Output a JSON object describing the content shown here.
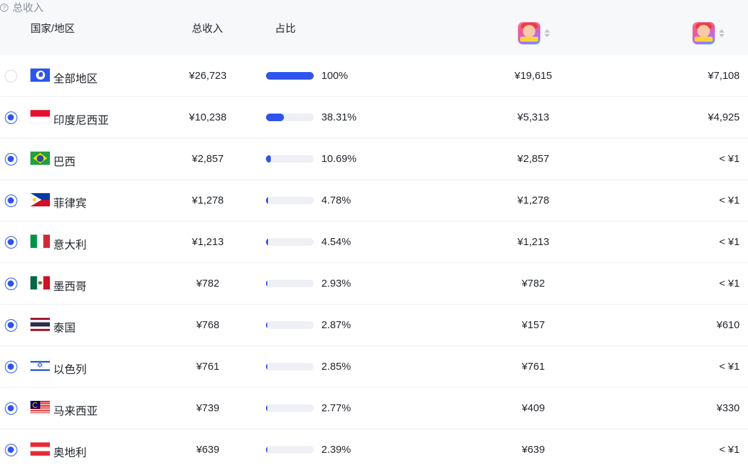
{
  "header": {
    "country": "国家/地区",
    "total": "总收入",
    "share": "占比",
    "group_label": "总收入",
    "help_glyph": "?"
  },
  "rows": [
    {
      "country": "全部地区",
      "flag": "globe-icon",
      "total": "¥26,723",
      "share": 1.0,
      "share_label": "100%",
      "app1": "¥19,615",
      "app2": "¥7,108",
      "selected": false
    },
    {
      "country": "印度尼西亚",
      "flag": "flag-indonesia",
      "total": "¥10,238",
      "share": 0.3831,
      "share_label": "38.31%",
      "app1": "¥5,313",
      "app2": "¥4,925",
      "selected": true
    },
    {
      "country": "巴西",
      "flag": "flag-brazil",
      "total": "¥2,857",
      "share": 0.1069,
      "share_label": "10.69%",
      "app1": "¥2,857",
      "app2": "< ¥1",
      "selected": true
    },
    {
      "country": "菲律宾",
      "flag": "flag-philippines",
      "total": "¥1,278",
      "share": 0.0478,
      "share_label": "4.78%",
      "app1": "¥1,278",
      "app2": "< ¥1",
      "selected": true
    },
    {
      "country": "意大利",
      "flag": "flag-italy",
      "total": "¥1,213",
      "share": 0.0454,
      "share_label": "4.54%",
      "app1": "¥1,213",
      "app2": "< ¥1",
      "selected": true
    },
    {
      "country": "墨西哥",
      "flag": "flag-mexico",
      "total": "¥782",
      "share": 0.0293,
      "share_label": "2.93%",
      "app1": "¥782",
      "app2": "< ¥1",
      "selected": true
    },
    {
      "country": "泰国",
      "flag": "flag-thailand",
      "total": "¥768",
      "share": 0.0287,
      "share_label": "2.87%",
      "app1": "¥157",
      "app2": "¥610",
      "selected": true
    },
    {
      "country": "以色列",
      "flag": "flag-israel",
      "total": "¥761",
      "share": 0.0285,
      "share_label": "2.85%",
      "app1": "¥761",
      "app2": "< ¥1",
      "selected": true
    },
    {
      "country": "马来西亚",
      "flag": "flag-malaysia",
      "total": "¥739",
      "share": 0.0277,
      "share_label": "2.77%",
      "app1": "¥409",
      "app2": "¥330",
      "selected": true
    },
    {
      "country": "奥地利",
      "flag": "flag-austria",
      "total": "¥639",
      "share": 0.0239,
      "share_label": "2.39%",
      "app1": "¥639",
      "app2": "< ¥1",
      "selected": true
    }
  ],
  "colors": {
    "accent": "#2f54eb",
    "header_bg": "#f7f8fa",
    "track": "#eef0f5"
  }
}
